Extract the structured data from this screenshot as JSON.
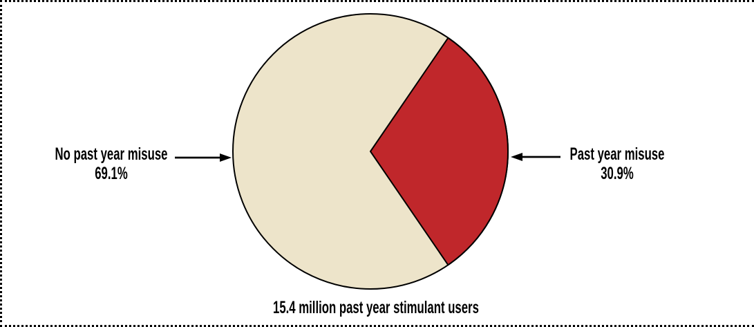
{
  "chart_data": {
    "type": "pie",
    "title": "",
    "caption": "15.4 million past year stimulant users",
    "slices": [
      {
        "label": "No past year misuse",
        "value": 69.1,
        "display": "69.1%",
        "color": "#EDE4CA"
      },
      {
        "label": "Past year misuse",
        "value": 30.9,
        "display": "30.9%",
        "color": "#C0272B"
      }
    ],
    "legend_position": "external-callout-labels",
    "outline_color": "#000000",
    "misuse_slice_orientation": "centered-on-right-horizontal-axis"
  }
}
